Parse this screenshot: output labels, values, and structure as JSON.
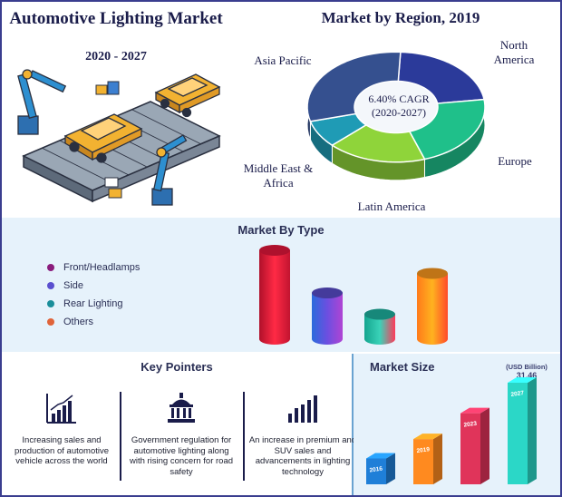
{
  "header": {
    "title": "Automotive Lighting Market",
    "years": "2020 - 2027"
  },
  "region_chart": {
    "title": "Market by Region, 2019",
    "cagr": "6.40% CAGR",
    "cagr_period": "(2020-2027)",
    "labels": {
      "north_america": "North America",
      "europe": "Europe",
      "latin_america": "Latin America",
      "mea": "Middle East & Africa",
      "apac": "Asia Pacific"
    }
  },
  "type_section": {
    "title": "Market By Type",
    "legend": [
      {
        "label": "Front/Headlamps",
        "color": "#8a1c7c"
      },
      {
        "label": "Side",
        "color": "#5a4fcf"
      },
      {
        "label": "Rear Lighting",
        "color": "#1a8e9a"
      },
      {
        "label": "Others",
        "color": "#e0643a"
      }
    ]
  },
  "pointers": {
    "title": "Key Pointers",
    "items": [
      {
        "text": "Increasing sales and production of automotive vehicle across the world",
        "icon": "bar-growth-icon"
      },
      {
        "text": "Government regulation for automotive lighting along with rising concern for road safety",
        "icon": "government-building-icon"
      },
      {
        "text": "An increase in premium and SUV sales and advancements in lighting technology",
        "icon": "bar-chart-icon"
      }
    ]
  },
  "market_size": {
    "title": "Market Size",
    "unit": "(USD Billion)",
    "value_2027": "31.46"
  },
  "chart_data": [
    {
      "type": "pie",
      "title": "Market by Region, 2019",
      "categories": [
        "North America",
        "Europe",
        "Latin America",
        "Middle East & Africa",
        "Asia Pacific"
      ],
      "values": [
        22,
        22,
        18,
        8,
        30
      ],
      "colors": [
        "#2b3a9a",
        "#1fc08a",
        "#8fd43a",
        "#1f9bb5",
        "#35508f"
      ]
    },
    {
      "type": "bar",
      "title": "Market By Type",
      "categories": [
        "Front/Headlamps",
        "Side",
        "Rear Lighting",
        "Others"
      ],
      "values": [
        100,
        52,
        28,
        74
      ],
      "colors": [
        "#e8173c",
        "#5a4fcf",
        "#1fb5a2",
        "#ff9a1f"
      ]
    },
    {
      "type": "bar",
      "title": "Market Size",
      "ylabel": "(USD Billion)",
      "categories": [
        "2016",
        "2019",
        "2023",
        "2027"
      ],
      "values": [
        8,
        14,
        22,
        31.46
      ],
      "colors": [
        "#1f7fd8",
        "#ff8a1f",
        "#e0345a",
        "#2bd7c7"
      ]
    }
  ]
}
